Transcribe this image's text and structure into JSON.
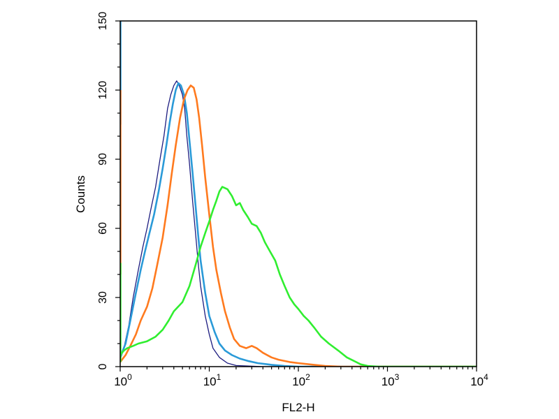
{
  "chart_data": {
    "type": "line",
    "title": "",
    "xlabel": "FL2-H",
    "ylabel": "Counts",
    "x_scale": "log",
    "xlim": [
      1,
      10000
    ],
    "ylim": [
      0,
      150
    ],
    "grid": false,
    "x_ticks": [
      {
        "value": 1,
        "base": "10",
        "exp": "0"
      },
      {
        "value": 10,
        "base": "10",
        "exp": "1"
      },
      {
        "value": 100,
        "base": "10",
        "exp": "2"
      },
      {
        "value": 1000,
        "base": "10",
        "exp": "3"
      },
      {
        "value": 10000,
        "base": "10",
        "exp": "4"
      }
    ],
    "y_ticks": [
      {
        "value": 0,
        "label": "0"
      },
      {
        "value": 30,
        "label": "30"
      },
      {
        "value": 60,
        "label": "60"
      },
      {
        "value": 90,
        "label": "90"
      },
      {
        "value": 120,
        "label": "120"
      },
      {
        "value": 150,
        "label": "150"
      }
    ],
    "series": [
      {
        "color": "#1c1c80",
        "stroke_width": 1.3,
        "points": [
          [
            1.0,
            3
          ],
          [
            1.1,
            8
          ],
          [
            1.25,
            18
          ],
          [
            1.4,
            30
          ],
          [
            1.6,
            42
          ],
          [
            1.8,
            52
          ],
          [
            2.0,
            60
          ],
          [
            2.2,
            68
          ],
          [
            2.5,
            78
          ],
          [
            2.8,
            90
          ],
          [
            3.1,
            100
          ],
          [
            3.4,
            112
          ],
          [
            3.7,
            118
          ],
          [
            4.0,
            122
          ],
          [
            4.3,
            124
          ],
          [
            4.6,
            122
          ],
          [
            5.0,
            118
          ],
          [
            5.3,
            112
          ],
          [
            5.6,
            100
          ],
          [
            6.0,
            88
          ],
          [
            6.5,
            72
          ],
          [
            7.0,
            58
          ],
          [
            7.5,
            45
          ],
          [
            8.0,
            35
          ],
          [
            9.0,
            22
          ],
          [
            10,
            14
          ],
          [
            11,
            8
          ],
          [
            13,
            4
          ],
          [
            16,
            1.5
          ],
          [
            20,
            0.5
          ],
          [
            40,
            0
          ],
          [
            10000,
            0
          ]
        ]
      },
      {
        "color": "#2a9ad8",
        "stroke_width": 2.6,
        "points": [
          [
            1.0,
            4
          ],
          [
            1.15,
            10
          ],
          [
            1.3,
            20
          ],
          [
            1.5,
            32
          ],
          [
            1.7,
            42
          ],
          [
            1.9,
            50
          ],
          [
            2.1,
            57
          ],
          [
            2.4,
            66
          ],
          [
            2.7,
            76
          ],
          [
            3.0,
            86
          ],
          [
            3.3,
            96
          ],
          [
            3.6,
            106
          ],
          [
            3.9,
            114
          ],
          [
            4.2,
            120
          ],
          [
            4.5,
            123
          ],
          [
            4.8,
            122
          ],
          [
            5.2,
            118
          ],
          [
            5.6,
            110
          ],
          [
            6.0,
            98
          ],
          [
            6.5,
            84
          ],
          [
            7.0,
            70
          ],
          [
            7.5,
            57
          ],
          [
            8.0,
            46
          ],
          [
            9.0,
            32
          ],
          [
            10,
            22
          ],
          [
            11.5,
            15
          ],
          [
            13,
            10
          ],
          [
            15,
            7
          ],
          [
            18,
            5
          ],
          [
            22,
            3.5
          ],
          [
            27,
            2.5
          ],
          [
            35,
            1.5
          ],
          [
            50,
            0.8
          ],
          [
            70,
            0.3
          ],
          [
            100,
            0
          ],
          [
            10000,
            0
          ]
        ]
      },
      {
        "color": "#ff7a1e",
        "stroke_width": 2.6,
        "points": [
          [
            1.0,
            2
          ],
          [
            1.15,
            5
          ],
          [
            1.3,
            9
          ],
          [
            1.5,
            14
          ],
          [
            1.7,
            20
          ],
          [
            2.0,
            26
          ],
          [
            2.3,
            34
          ],
          [
            2.6,
            44
          ],
          [
            3.0,
            56
          ],
          [
            3.4,
            70
          ],
          [
            3.8,
            84
          ],
          [
            4.2,
            96
          ],
          [
            4.7,
            108
          ],
          [
            5.2,
            116
          ],
          [
            5.7,
            120
          ],
          [
            6.2,
            122
          ],
          [
            6.7,
            121
          ],
          [
            7.2,
            116
          ],
          [
            7.7,
            108
          ],
          [
            8.3,
            96
          ],
          [
            9.0,
            82
          ],
          [
            10,
            66
          ],
          [
            11,
            52
          ],
          [
            12,
            42
          ],
          [
            13.5,
            32
          ],
          [
            15,
            24
          ],
          [
            17,
            17
          ],
          [
            19,
            12
          ],
          [
            22,
            9
          ],
          [
            26,
            8
          ],
          [
            30,
            9
          ],
          [
            34,
            8
          ],
          [
            40,
            6
          ],
          [
            50,
            4
          ],
          [
            60,
            3
          ],
          [
            80,
            2
          ],
          [
            100,
            1.5
          ],
          [
            150,
            0.8
          ],
          [
            200,
            0.3
          ],
          [
            300,
            0
          ],
          [
            10000,
            0
          ]
        ]
      },
      {
        "color": "#30ee30",
        "stroke_width": 2.6,
        "points": [
          [
            1.0,
            5
          ],
          [
            1.1,
            7
          ],
          [
            1.2,
            8
          ],
          [
            1.4,
            9
          ],
          [
            1.6,
            10
          ],
          [
            2.0,
            11
          ],
          [
            2.5,
            13
          ],
          [
            3.0,
            16
          ],
          [
            3.5,
            20
          ],
          [
            4.0,
            24
          ],
          [
            5.0,
            28
          ],
          [
            6.0,
            35
          ],
          [
            7.0,
            44
          ],
          [
            8.0,
            52
          ],
          [
            9.0,
            58
          ],
          [
            10,
            63
          ],
          [
            11,
            68
          ],
          [
            12,
            72
          ],
          [
            13,
            76
          ],
          [
            14,
            78
          ],
          [
            16,
            77
          ],
          [
            18,
            74
          ],
          [
            20,
            70
          ],
          [
            22,
            71
          ],
          [
            24,
            68
          ],
          [
            27,
            65
          ],
          [
            30,
            62
          ],
          [
            34,
            61
          ],
          [
            38,
            58
          ],
          [
            42,
            54
          ],
          [
            48,
            50
          ],
          [
            55,
            46
          ],
          [
            62,
            40
          ],
          [
            70,
            35
          ],
          [
            80,
            30
          ],
          [
            90,
            27
          ],
          [
            100,
            25
          ],
          [
            115,
            22
          ],
          [
            130,
            20
          ],
          [
            150,
            17
          ],
          [
            180,
            13
          ],
          [
            220,
            10
          ],
          [
            280,
            7
          ],
          [
            350,
            4
          ],
          [
            420,
            2.5
          ],
          [
            500,
            1
          ],
          [
            600,
            0.3
          ],
          [
            800,
            0
          ],
          [
            10000,
            0
          ]
        ]
      },
      {
        "color": "#2a9ad8",
        "stroke_width": 3.5,
        "points": [
          [
            1.0,
            150
          ],
          [
            1.0,
            105
          ]
        ]
      },
      {
        "color": "#ff7a1e",
        "stroke_width": 3.5,
        "points": [
          [
            1.0,
            120
          ],
          [
            1.0,
            40
          ]
        ]
      },
      {
        "color": "#30ee30",
        "stroke_width": 3.5,
        "points": [
          [
            1.0,
            45
          ],
          [
            1.0,
            2
          ]
        ]
      }
    ]
  }
}
